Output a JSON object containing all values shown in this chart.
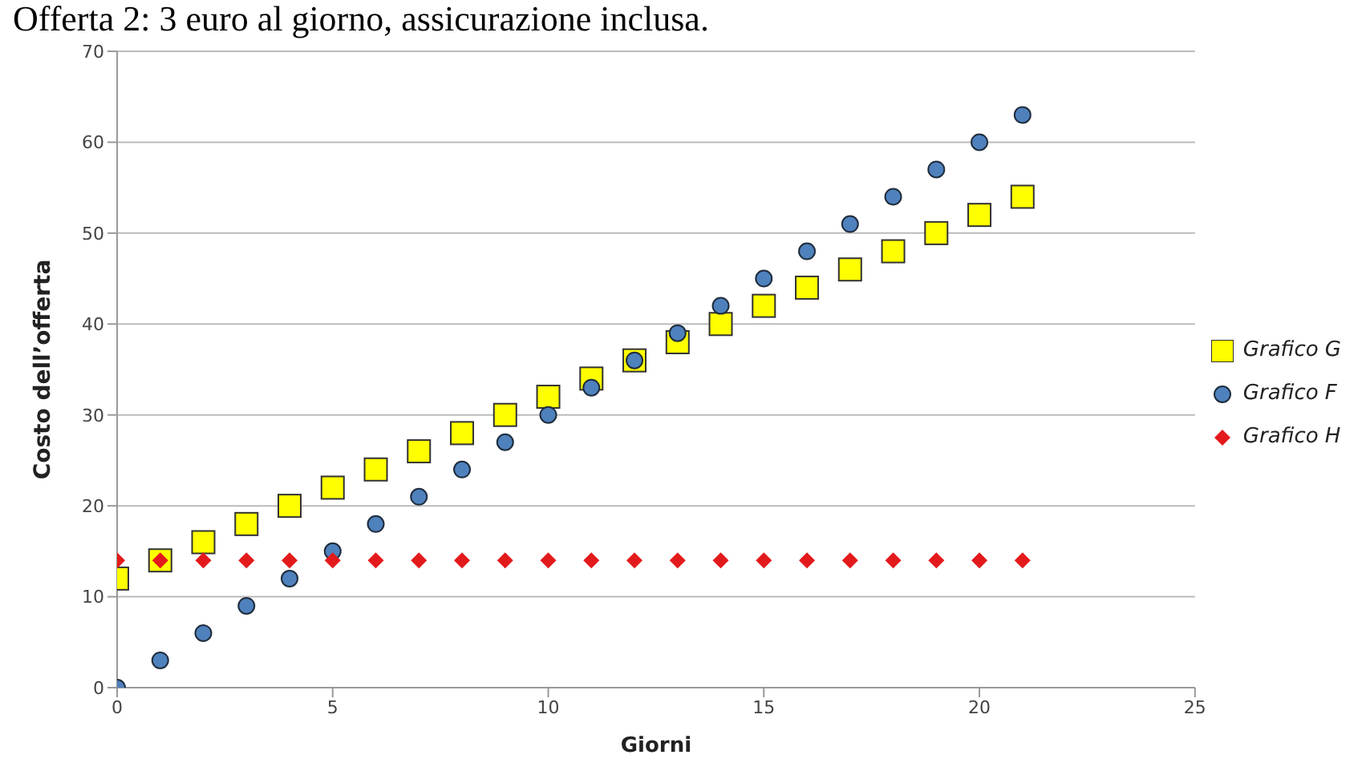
{
  "chart_data": {
    "type": "scatter",
    "title": "Offerta 2: 3 euro al giorno, assicurazione inclusa.",
    "xlabel": "Giorni",
    "ylabel": "Costo dell’offerta",
    "x": [
      0,
      1,
      2,
      3,
      4,
      5,
      6,
      7,
      8,
      9,
      10,
      11,
      12,
      13,
      14,
      15,
      16,
      17,
      18,
      19,
      20,
      21
    ],
    "xlim": [
      0,
      25
    ],
    "xticks": [
      0,
      5,
      10,
      15,
      20,
      25
    ],
    "ylim": [
      0,
      70
    ],
    "yticks": [
      0,
      10,
      20,
      30,
      40,
      50,
      60,
      70
    ],
    "grid": "y",
    "legend": "right",
    "series": [
      {
        "name": "Grafico G",
        "color": "#ffff00",
        "marker": "square",
        "values": [
          12,
          14,
          16,
          18,
          20,
          22,
          24,
          26,
          28,
          30,
          32,
          34,
          36,
          38,
          40,
          42,
          44,
          46,
          48,
          50,
          52,
          54
        ]
      },
      {
        "name": "Grafico F",
        "color": "#4f81bd",
        "marker": "circle",
        "values": [
          0,
          3,
          6,
          9,
          12,
          15,
          18,
          21,
          24,
          27,
          30,
          33,
          36,
          39,
          42,
          45,
          48,
          51,
          54,
          57,
          60,
          63
        ]
      },
      {
        "name": "Grafico H",
        "color": "#e31a1c",
        "marker": "diamond",
        "values": [
          14,
          14,
          14,
          14,
          14,
          14,
          14,
          14,
          14,
          14,
          14,
          14,
          14,
          14,
          14,
          14,
          14,
          14,
          14,
          14,
          14,
          14
        ]
      }
    ]
  }
}
